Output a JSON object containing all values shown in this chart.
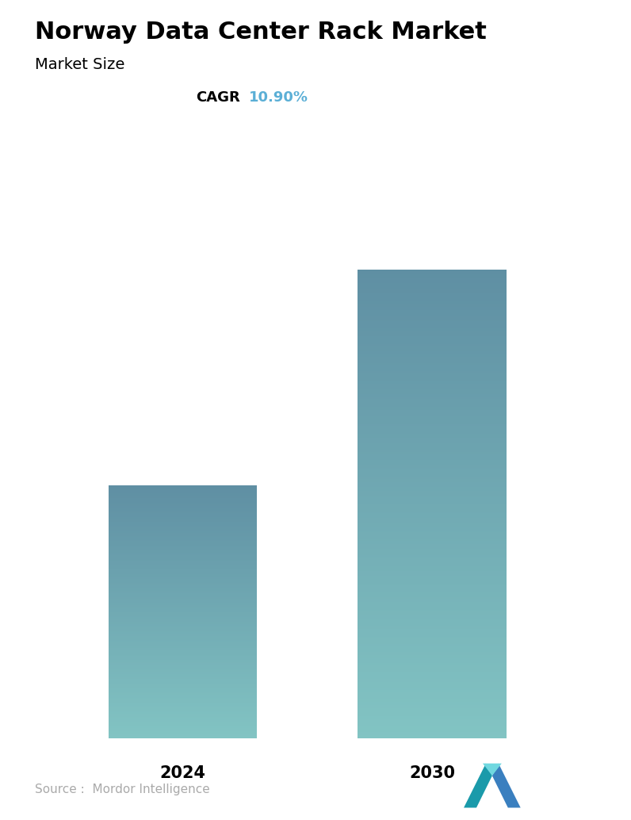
{
  "title": "Norway Data Center Rack Market",
  "subtitle": "Market Size",
  "cagr_label": "CAGR",
  "cagr_value": "10.90%",
  "cagr_color": "#5bafd6",
  "categories": [
    "2024",
    "2030"
  ],
  "values": [
    0.42,
    0.78
  ],
  "bar_top_color": "#5f8fa3",
  "bar_bottom_color": "#82c4c3",
  "background_color": "#ffffff",
  "title_fontsize": 22,
  "subtitle_fontsize": 14,
  "cagr_fontsize": 13,
  "tick_fontsize": 15,
  "source_text": "Source :  Mordor Intelligence",
  "source_color": "#aaaaaa",
  "source_fontsize": 11
}
